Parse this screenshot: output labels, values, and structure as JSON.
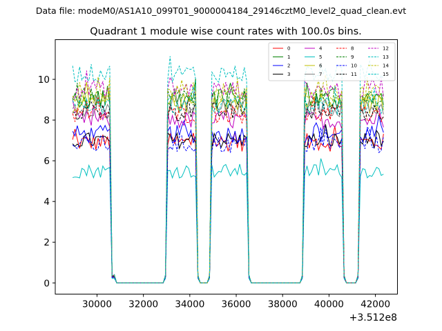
{
  "chart_data": {
    "type": "line",
    "suptitle": "Data file: modeM0/AS1A10_099T01_9000004184_29146cztM0_level2_quad_clean.evt",
    "title": "Quadrant 1 module wise count rates with 100.0s bins.",
    "xlabel": "",
    "ylabel": "",
    "x_offset_label": "+3.512e8",
    "xlim": [
      28200,
      42950
    ],
    "ylim": [
      -0.55,
      11.95
    ],
    "x_ticks": [
      30000,
      32000,
      34000,
      36000,
      38000,
      40000,
      42000
    ],
    "x_tick_labels": [
      "30000",
      "32000",
      "34000",
      "36000",
      "38000",
      "40000",
      "42000"
    ],
    "y_ticks": [
      0,
      2,
      4,
      6,
      8,
      10
    ],
    "y_tick_labels": [
      "0",
      "2",
      "4",
      "6",
      "8",
      "10"
    ],
    "bin_seconds": 100,
    "x_start": 28950,
    "x_end": 42350,
    "segments": [
      {
        "from": 28950,
        "to": 30550,
        "state": "on"
      },
      {
        "from": 30650,
        "to": 30750,
        "state": "edge"
      },
      {
        "from": 30850,
        "to": 32850,
        "state": "off"
      },
      {
        "from": 32950,
        "to": 32950,
        "state": "edge"
      },
      {
        "from": 33050,
        "to": 34250,
        "state": "on"
      },
      {
        "from": 34350,
        "to": 34350,
        "state": "edge"
      },
      {
        "from": 34450,
        "to": 34750,
        "state": "off"
      },
      {
        "from": 34850,
        "to": 34850,
        "state": "edge"
      },
      {
        "from": 34950,
        "to": 36450,
        "state": "on"
      },
      {
        "from": 36550,
        "to": 36550,
        "state": "edge"
      },
      {
        "from": 36650,
        "to": 38750,
        "state": "off"
      },
      {
        "from": 38850,
        "to": 38850,
        "state": "edge"
      },
      {
        "from": 38950,
        "to": 40550,
        "state": "on"
      },
      {
        "from": 40650,
        "to": 40650,
        "state": "edge"
      },
      {
        "from": 40750,
        "to": 41150,
        "state": "off"
      },
      {
        "from": 41250,
        "to": 41250,
        "state": "edge"
      },
      {
        "from": 41350,
        "to": 42350,
        "state": "on"
      }
    ],
    "legend_location": "upper right",
    "series": [
      {
        "name": "0",
        "color": "#ff0000",
        "dashed": false,
        "level": 6.9,
        "jitter": 0.45
      },
      {
        "name": "1",
        "color": "#008000",
        "dashed": false,
        "level": 9.0,
        "jitter": 0.5
      },
      {
        "name": "2",
        "color": "#0000ff",
        "dashed": false,
        "level": 7.3,
        "jitter": 0.45
      },
      {
        "name": "3",
        "color": "#000000",
        "dashed": false,
        "level": 7.0,
        "jitter": 0.4
      },
      {
        "name": "4",
        "color": "#bf00bf",
        "dashed": false,
        "level": 8.0,
        "jitter": 0.45
      },
      {
        "name": "5",
        "color": "#00bfbf",
        "dashed": false,
        "level": 5.5,
        "jitter": 0.35
      },
      {
        "name": "6",
        "color": "#bfbf00",
        "dashed": false,
        "level": 8.8,
        "jitter": 0.5
      },
      {
        "name": "7",
        "color": "#808080",
        "dashed": false,
        "level": 8.6,
        "jitter": 0.45
      },
      {
        "name": "8",
        "color": "#ff0000",
        "dashed": true,
        "level": 8.3,
        "jitter": 0.45
      },
      {
        "name": "9",
        "color": "#008000",
        "dashed": true,
        "level": 9.1,
        "jitter": 0.5
      },
      {
        "name": "10",
        "color": "#0000ff",
        "dashed": true,
        "level": 6.8,
        "jitter": 0.45
      },
      {
        "name": "11",
        "color": "#000000",
        "dashed": true,
        "level": 8.4,
        "jitter": 0.45
      },
      {
        "name": "12",
        "color": "#bf00bf",
        "dashed": true,
        "level": 9.5,
        "jitter": 0.45
      },
      {
        "name": "13",
        "color": "#00bfbf",
        "dashed": true,
        "level": 10.3,
        "jitter": 0.45
      },
      {
        "name": "14",
        "color": "#bfbf00",
        "dashed": true,
        "level": 9.3,
        "jitter": 0.45
      },
      {
        "name": "15",
        "color": "#00bfbf",
        "dashed": true,
        "level": 8.7,
        "jitter": 0.45
      }
    ]
  }
}
